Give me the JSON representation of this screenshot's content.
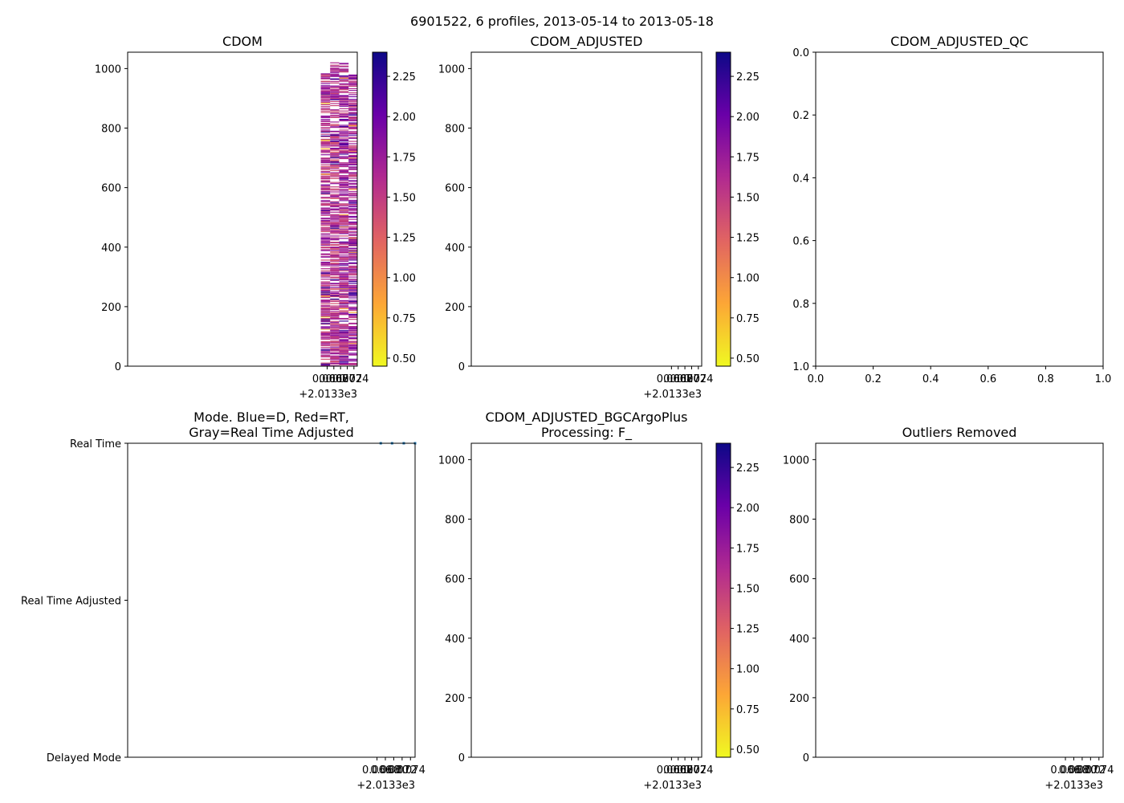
{
  "figure": {
    "title": "6901522, 6 profiles, 2013-05-14 to 2013-05-18"
  },
  "colormap": {
    "name": "plasma_r",
    "stops": [
      "#f0f921",
      "#fca636",
      "#e16462",
      "#b12a90",
      "#6a00a8",
      "#0d0887"
    ],
    "vmin": 0.45,
    "vmax": 2.4
  },
  "chart_data": [
    {
      "id": "cdom",
      "type": "heatmap",
      "title": "CDOM",
      "xlim": [
        2013.3064,
        2013.375
      ],
      "xticks": [
        2013.366,
        2013.368,
        2013.37,
        2013.372,
        2013.374
      ],
      "xtick_labels": [
        "0.066",
        "0.068",
        "0.070",
        "0.072",
        "0.074"
      ],
      "x_offset_label": "+2.0133e3",
      "ylim": [
        1055,
        0
      ],
      "yticks": [
        0,
        200,
        400,
        600,
        800,
        1000
      ],
      "ytick_labels": [
        "0",
        "200",
        "400",
        "600",
        "800",
        "1000"
      ],
      "columns": [
        {
          "x0": 2013.3641,
          "x1": 2013.3669,
          "max_depth": 985,
          "min": 0.6,
          "max": 2.3,
          "mean": 1.6
        },
        {
          "x0": 2013.3669,
          "x1": 2013.3696,
          "max_depth": 1023,
          "min": 1.2,
          "max": 2.3,
          "mean": 1.6
        },
        {
          "x0": 2013.3696,
          "x1": 2013.3724,
          "max_depth": 1023,
          "min": 0.7,
          "max": 2.2,
          "mean": 1.65
        },
        {
          "x0": 2013.3724,
          "x1": 2013.3751,
          "max_depth": 985,
          "min": 0.8,
          "max": 2.2,
          "mean": 1.7
        }
      ],
      "colorbar": {
        "ticks": [
          0.5,
          0.75,
          1.0,
          1.25,
          1.5,
          1.75,
          2.0,
          2.25
        ],
        "tick_labels": [
          "0.50",
          "0.75",
          "1.00",
          "1.25",
          "1.50",
          "1.75",
          "2.00",
          "2.25"
        ]
      }
    },
    {
      "id": "cdom_adjusted",
      "type": "heatmap",
      "title": "CDOM_ADJUSTED",
      "xlim": [
        2013.3064,
        2013.375
      ],
      "xticks": [
        2013.366,
        2013.368,
        2013.37,
        2013.372,
        2013.374
      ],
      "xtick_labels": [
        "0.066",
        "0.068",
        "0.070",
        "0.072",
        "0.074"
      ],
      "x_offset_label": "+2.0133e3",
      "ylim": [
        1055,
        0
      ],
      "yticks": [
        0,
        200,
        400,
        600,
        800,
        1000
      ],
      "ytick_labels": [
        "0",
        "200",
        "400",
        "600",
        "800",
        "1000"
      ],
      "columns": [],
      "colorbar": {
        "ticks": [
          0.5,
          0.75,
          1.0,
          1.25,
          1.5,
          1.75,
          2.0,
          2.25
        ],
        "tick_labels": [
          "0.50",
          "0.75",
          "1.00",
          "1.25",
          "1.50",
          "1.75",
          "2.00",
          "2.25"
        ]
      }
    },
    {
      "id": "cdom_adjusted_qc",
      "type": "scatter",
      "title": "CDOM_ADJUSTED_QC",
      "xlim": [
        0,
        1
      ],
      "ylim": [
        0,
        1
      ],
      "xticks": [
        0,
        0.2,
        0.4,
        0.6,
        0.8,
        1.0
      ],
      "xtick_labels": [
        "0.0",
        "0.2",
        "0.4",
        "0.6",
        "0.8",
        "1.0"
      ],
      "yticks": [
        0,
        0.2,
        0.4,
        0.6,
        0.8,
        1.0
      ],
      "ytick_labels": [
        "0.0",
        "0.2",
        "0.4",
        "0.6",
        "0.8",
        "1.0"
      ]
    },
    {
      "id": "mode",
      "type": "scatter",
      "title_lines": [
        "Mode. Blue=D, Red=RT,",
        "Gray=Real Time Adjusted"
      ],
      "xlim": [
        2013.3064,
        2013.3751
      ],
      "xticks": [
        2013.366,
        2013.368,
        2013.37,
        2013.372,
        2013.374
      ],
      "xtick_labels": [
        "0.066",
        "0.068",
        "0.070",
        "0.072",
        "0.074"
      ],
      "x_offset_label": "+2.0133e3",
      "ylim": [
        0,
        2
      ],
      "yticks": [
        0,
        1,
        2
      ],
      "ytick_labels": [
        "Real Time",
        "Real Time Adjusted",
        "Delayed Mode"
      ],
      "points": [
        {
          "x": 2013.3669,
          "y": 0
        },
        {
          "x": 2013.3696,
          "y": 0
        },
        {
          "x": 2013.3724,
          "y": 0
        },
        {
          "x": 2013.3751,
          "y": 0
        }
      ]
    },
    {
      "id": "cdom_adjusted_bgcargoplus",
      "type": "heatmap",
      "title_lines": [
        "CDOM_ADJUSTED_BGCArgoPlus",
        "Processing: F_"
      ],
      "xlim": [
        2013.3064,
        2013.375
      ],
      "xticks": [
        2013.366,
        2013.368,
        2013.37,
        2013.372,
        2013.374
      ],
      "xtick_labels": [
        "0.066",
        "0.068",
        "0.070",
        "0.072",
        "0.074"
      ],
      "x_offset_label": "+2.0133e3",
      "ylim": [
        1055,
        0
      ],
      "yticks": [
        0,
        200,
        400,
        600,
        800,
        1000
      ],
      "ytick_labels": [
        "0",
        "200",
        "400",
        "600",
        "800",
        "1000"
      ],
      "columns": [],
      "colorbar": {
        "ticks": [
          0.5,
          0.75,
          1.0,
          1.25,
          1.5,
          1.75,
          2.0,
          2.25
        ],
        "tick_labels": [
          "0.50",
          "0.75",
          "1.00",
          "1.25",
          "1.50",
          "1.75",
          "2.00",
          "2.25"
        ]
      }
    },
    {
      "id": "outliers_removed",
      "type": "heatmap",
      "title": "Outliers Removed",
      "xlim": [
        2013.3064,
        2013.375
      ],
      "xticks": [
        2013.366,
        2013.368,
        2013.37,
        2013.372,
        2013.374
      ],
      "xtick_labels": [
        "0.066",
        "0.068",
        "0.070",
        "0.072",
        "0.074"
      ],
      "x_offset_label": "+2.0133e3",
      "ylim": [
        1055,
        0
      ],
      "yticks": [
        0,
        200,
        400,
        600,
        800,
        1000
      ],
      "ytick_labels": [
        "0",
        "200",
        "400",
        "600",
        "800",
        "1000"
      ],
      "columns": []
    }
  ]
}
